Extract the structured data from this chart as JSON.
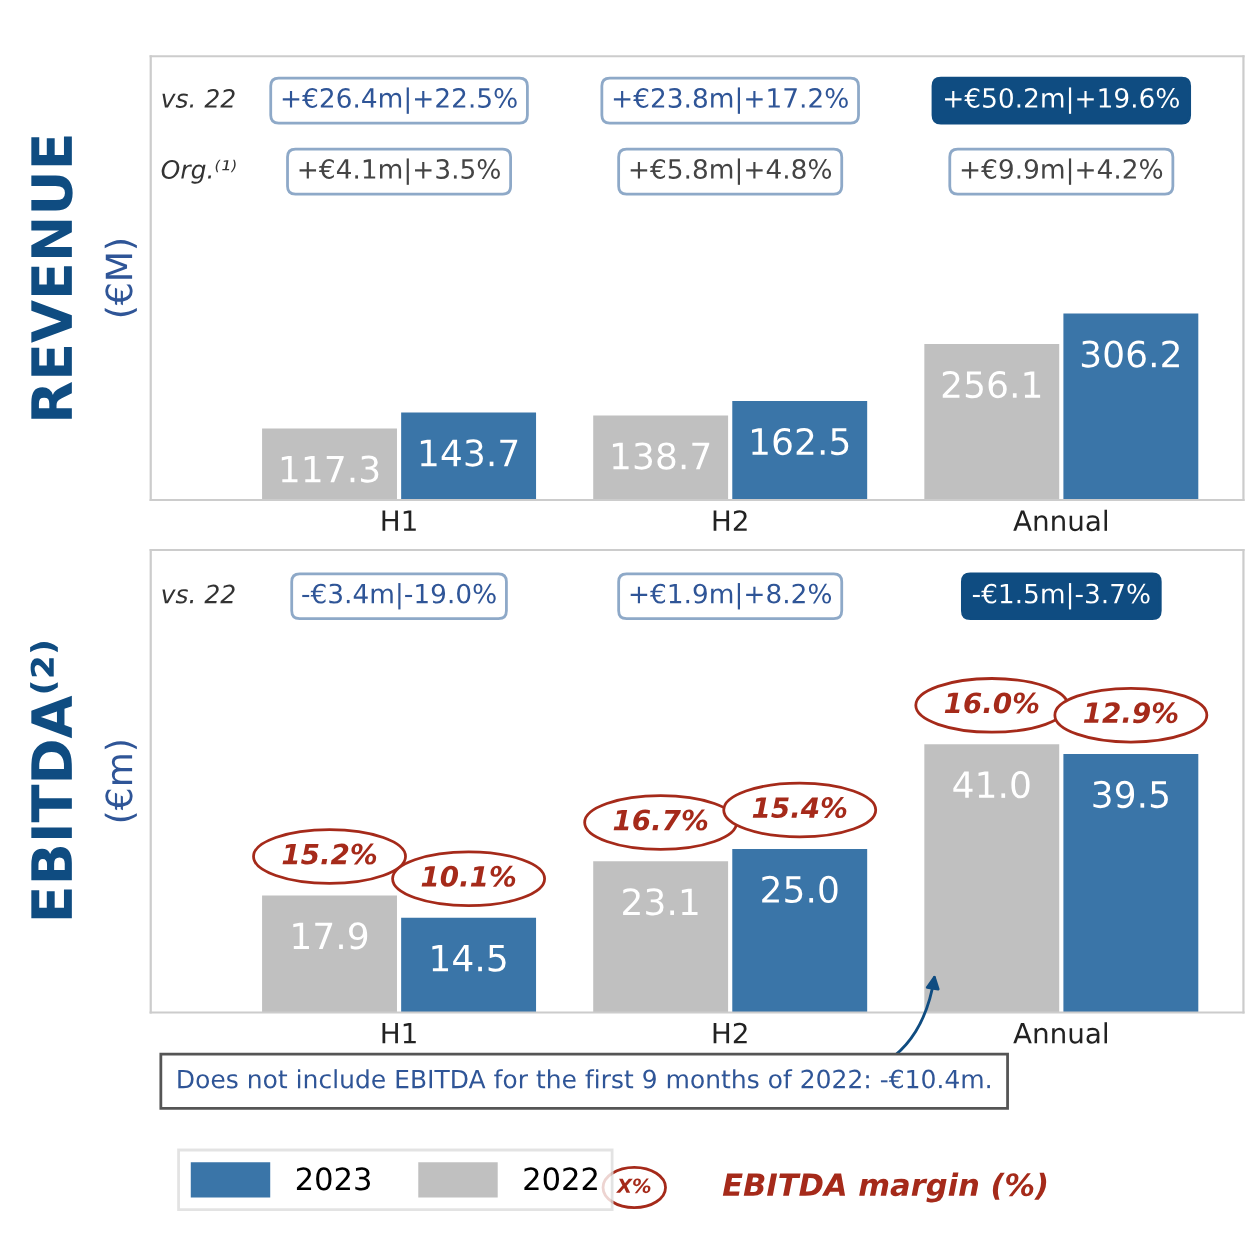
{
  "chart_data": [
    {
      "type": "bar",
      "title": "REVENUE",
      "ylabel": "(€M)",
      "categories": [
        "H1",
        "H2",
        "Annual"
      ],
      "series": [
        {
          "name": "2022",
          "color": "#c0c0c0",
          "values": [
            117.3,
            138.7,
            256.1
          ]
        },
        {
          "name": "2023",
          "color": "#3a75a8",
          "values": [
            143.7,
            162.5,
            306.2
          ]
        }
      ],
      "data_labels": true,
      "grid": false,
      "legend": "bottom",
      "annotations": [
        "vs. 22",
        "+€26.4m|+22.5%",
        "+€23.8m|+17.2%",
        "+€50.2m|+19.6%",
        "Org.⁽¹⁾",
        "+€4.1m|+3.5%",
        "+€5.8m|+4.8%",
        "+€9.9m|+4.2%"
      ]
    },
    {
      "type": "bar",
      "title": "EBITDA⁽²⁾",
      "ylabel": "(€m)",
      "categories": [
        "H1",
        "H2",
        "Annual"
      ],
      "series": [
        {
          "name": "2022",
          "color": "#c0c0c0",
          "values": [
            17.9,
            23.1,
            41.0
          ],
          "value_labels": [
            "17.9",
            "23.1",
            "41.0"
          ]
        },
        {
          "name": "2023",
          "color": "#3a75a8",
          "values": [
            14.5,
            25.0,
            39.5
          ],
          "value_labels": [
            "14.5",
            "25.0",
            "39.5"
          ]
        }
      ],
      "grid": false,
      "legend": "bottom",
      "annotations": [
        "vs. 22",
        "-€3.4m|-19.0%",
        "+€1.9m|+8.2%",
        "-€1.5m|-3.7%",
        {
          "text": "15.2%",
          "x": "H1",
          "y": 17.9
        },
        {
          "text": "10.1%",
          "x": "H1",
          "y": 14.5
        },
        {
          "text": "16.7%",
          "x": "H2",
          "y": 23.1
        },
        {
          "text": "15.4%",
          "x": "H2",
          "y": 25.0
        },
        {
          "text": "16.0%",
          "x": "Annual",
          "y": 41.0
        },
        {
          "text": "12.9%",
          "x": "Annual",
          "y": 39.5
        },
        "X%",
        "EBITDA margin (%)",
        "Does not include EBITDA for the first 9 months of 2022: -€10.4m."
      ]
    }
  ]
}
